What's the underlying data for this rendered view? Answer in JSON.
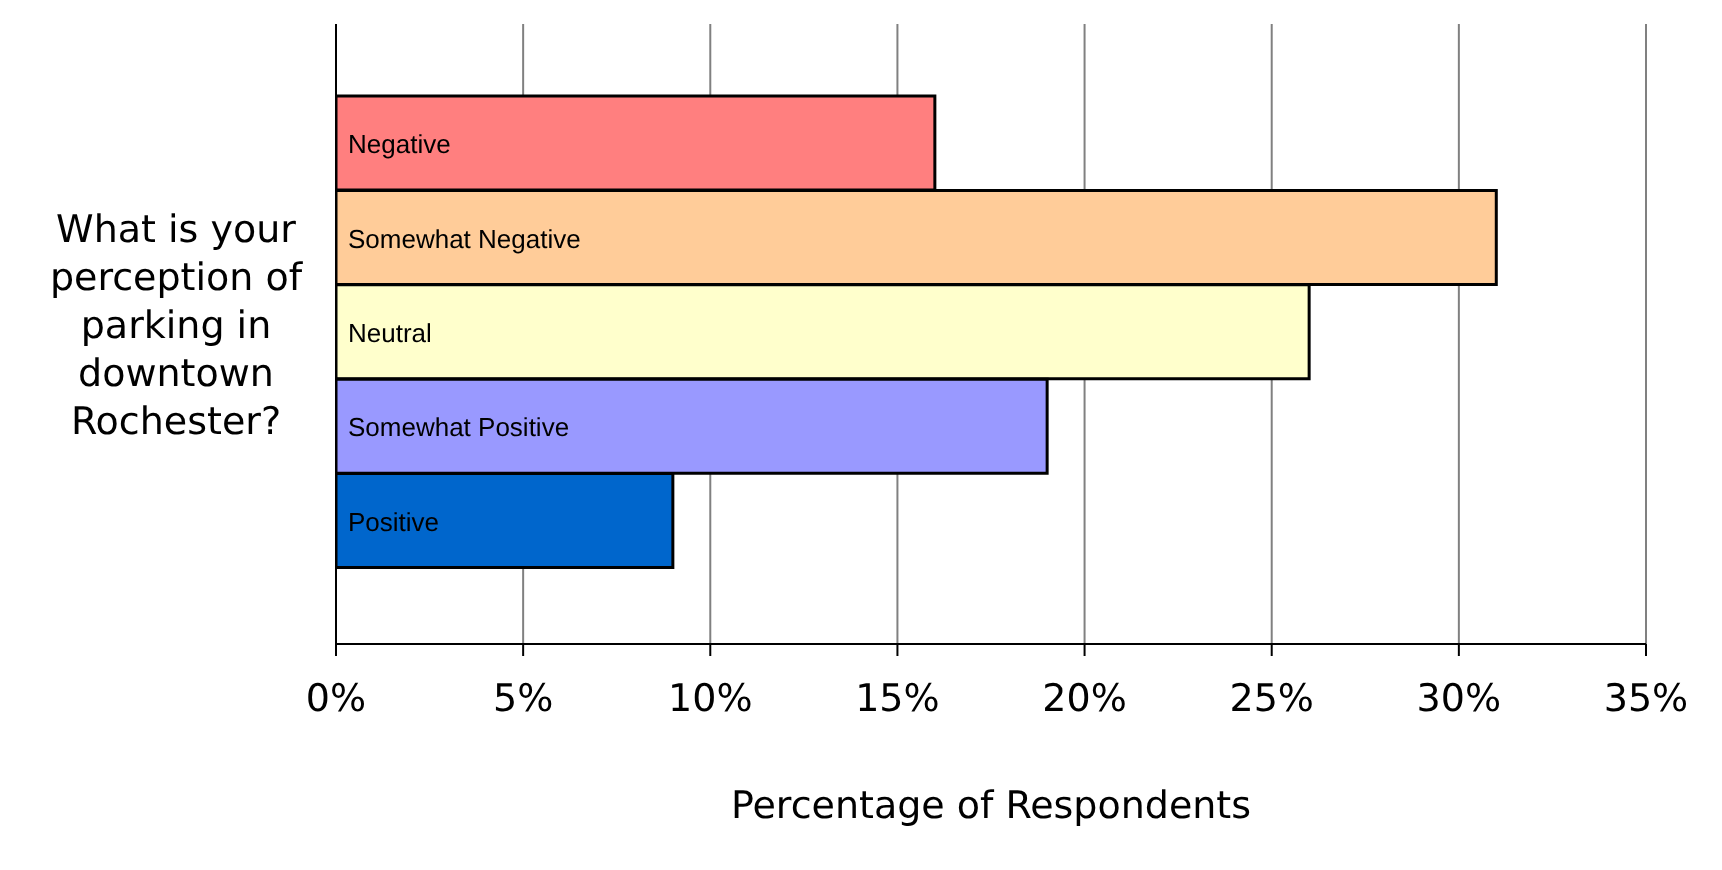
{
  "chart_data": {
    "type": "bar",
    "orientation": "horizontal",
    "xlabel": "Percentage of Respondents",
    "ylabel": "What is your perception of parking in downtown Rochester?",
    "categories": [
      "Negative",
      "Somewhat Negative",
      "Neutral",
      "Somewhat Positive",
      "Positive"
    ],
    "values": [
      16,
      31,
      26,
      19,
      9
    ],
    "colors": [
      "#ff7f7f",
      "#ffcc99",
      "#ffffcc",
      "#9999ff",
      "#0066cc"
    ],
    "xlim": [
      0,
      35
    ],
    "xticks": [
      {
        "value": 0,
        "label": "0%"
      },
      {
        "value": 5,
        "label": "5%"
      },
      {
        "value": 10,
        "label": "10%"
      },
      {
        "value": 15,
        "label": "15%"
      },
      {
        "value": 20,
        "label": "20%"
      },
      {
        "value": 25,
        "label": "25%"
      },
      {
        "value": 30,
        "label": "30%"
      },
      {
        "value": 35,
        "label": "35%"
      }
    ],
    "grid": "x",
    "legend": false
  }
}
